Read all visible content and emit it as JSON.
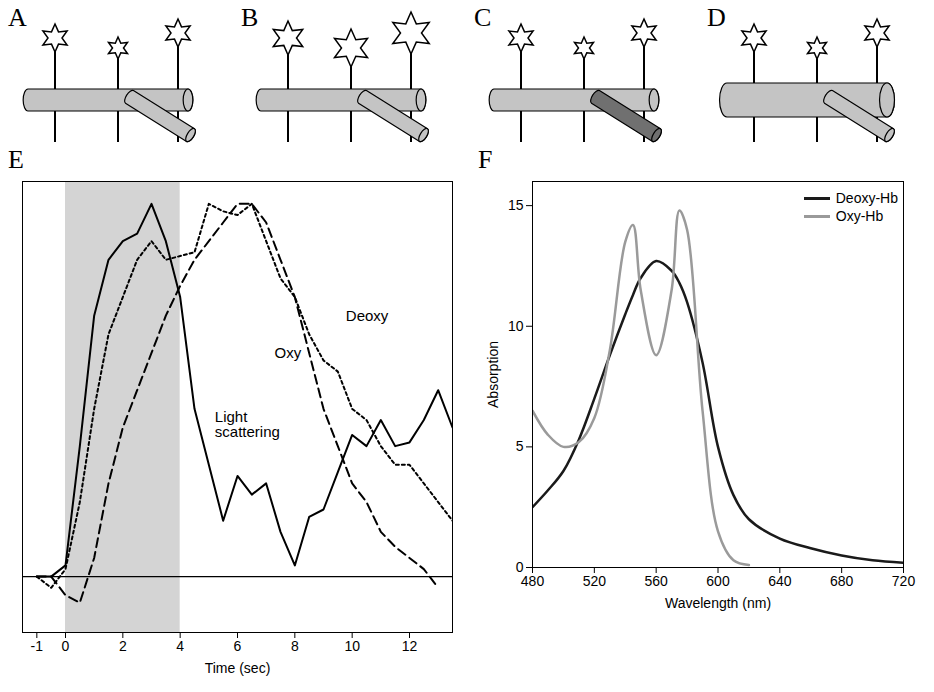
{
  "diagrams": [
    {
      "label": "A"
    },
    {
      "label": "B"
    },
    {
      "label": "C"
    },
    {
      "label": "D"
    }
  ],
  "chart_data": [
    {
      "type": "line",
      "title": "E",
      "x_label": "Time (sec)",
      "x": [
        -1,
        -0.5,
        0,
        0.5,
        1,
        1.5,
        2,
        2.5,
        3,
        3.5,
        4,
        4.5,
        5,
        5.5,
        6,
        6.5,
        7,
        7.5,
        8,
        8.5,
        9,
        9.5,
        10,
        10.5,
        11,
        11.5,
        12,
        12.5,
        13,
        13.5
      ],
      "series": [
        {
          "name": "Light scattering",
          "color": "#000000",
          "line_style": "solid",
          "values": [
            0,
            0,
            0.03,
            0.35,
            0.7,
            0.85,
            0.9,
            0.92,
            1.0,
            0.9,
            0.75,
            0.45,
            0.3,
            0.15,
            0.27,
            0.22,
            0.25,
            0.12,
            0.03,
            0.16,
            0.18,
            0.28,
            0.38,
            0.35,
            0.42,
            0.35,
            0.36,
            0.42,
            0.5,
            0.4
          ]
        },
        {
          "name": "Oxy",
          "color": "#000000",
          "line_style": "dashed",
          "values": [
            0,
            0,
            -0.05,
            -0.07,
            0.05,
            0.25,
            0.4,
            0.5,
            0.6,
            0.7,
            0.78,
            0.85,
            0.9,
            0.95,
            1.0,
            1.0,
            0.95,
            0.85,
            0.75,
            0.6,
            0.45,
            0.35,
            0.25,
            0.2,
            0.12,
            0.08,
            0.05,
            0.02,
            -0.03,
            null
          ]
        },
        {
          "name": "Deoxy",
          "color": "#000000",
          "line_style": "dotted",
          "values": [
            0,
            -0.03,
            0.02,
            0.2,
            0.45,
            0.65,
            0.75,
            0.85,
            0.9,
            0.85,
            0.86,
            0.87,
            1.0,
            0.98,
            0.97,
            1.0,
            0.9,
            0.8,
            0.75,
            0.65,
            0.58,
            0.55,
            0.45,
            0.42,
            0.35,
            0.3,
            0.3,
            0.25,
            0.2,
            0.15
          ]
        }
      ],
      "xlim": [
        -1.5,
        13.5
      ],
      "xticks": [
        -1,
        0,
        2,
        4,
        6,
        8,
        10,
        12
      ],
      "ylim": [
        -0.15,
        1.06
      ],
      "yticks": [],
      "tick_labels": "x",
      "shaded_interval": [
        0,
        4
      ],
      "baseline": 0
    },
    {
      "type": "line",
      "title": "F",
      "x_label": "Wavelength (nm)",
      "y_label": "Absorption",
      "x": [
        480,
        490,
        500,
        510,
        520,
        530,
        540,
        545,
        550,
        560,
        570,
        575,
        580,
        590,
        600,
        610,
        620,
        640,
        660,
        680,
        700,
        720
      ],
      "series": [
        {
          "name": "Deoxy-Hb",
          "color": "#1a1a1a",
          "line_style": "solid",
          "values": [
            2.5,
            3.2,
            4,
            5.3,
            7,
            8.8,
            10.5,
            11.3,
            12,
            12.7,
            12.3,
            11.8,
            11,
            8.5,
            5,
            3,
            2,
            1.2,
            0.8,
            0.5,
            0.3,
            0.2
          ]
        },
        {
          "name": "Oxy-Hb",
          "color": "#9a9a9a",
          "line_style": "solid",
          "values": [
            6.5,
            5.5,
            5,
            5.2,
            6.2,
            9,
            13.5,
            14.2,
            11.5,
            8.8,
            11.5,
            14.8,
            14,
            6.5,
            1.5,
            0.3,
            0.1,
            null,
            null,
            null,
            null,
            null
          ]
        }
      ],
      "xlim": [
        480,
        720
      ],
      "xticks": [
        480,
        520,
        560,
        600,
        640,
        680,
        720
      ],
      "ylim": [
        0,
        16
      ],
      "yticks": [
        0,
        5,
        10,
        15
      ],
      "legend": "top-right"
    }
  ]
}
